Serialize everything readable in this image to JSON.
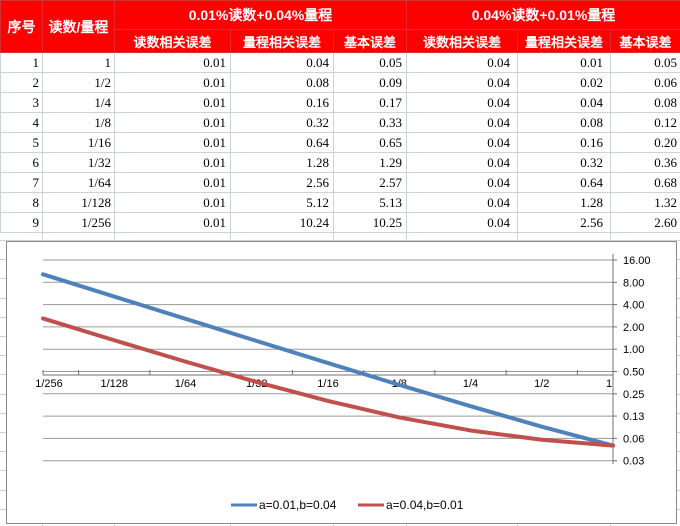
{
  "table": {
    "headers": {
      "serial": "序号",
      "ratio": "读数/量程",
      "group1": "0.01%读数+0.04%量程",
      "group2": "0.04%读数+0.01%量程",
      "sub": [
        "读数相关误差",
        "量程相关误差",
        "基本误差",
        "读数相关误差",
        "量程相关误差",
        "基本误差"
      ]
    },
    "rows": [
      {
        "serial": "1",
        "ratio": "1",
        "cells": [
          "0.01",
          "0.04",
          "0.05",
          "0.04",
          "0.01",
          "0.05"
        ]
      },
      {
        "serial": "2",
        "ratio": "1/2",
        "cells": [
          "0.01",
          "0.08",
          "0.09",
          "0.04",
          "0.02",
          "0.06"
        ]
      },
      {
        "serial": "3",
        "ratio": "1/4",
        "cells": [
          "0.01",
          "0.16",
          "0.17",
          "0.04",
          "0.04",
          "0.08"
        ]
      },
      {
        "serial": "4",
        "ratio": "1/8",
        "cells": [
          "0.01",
          "0.32",
          "0.33",
          "0.04",
          "0.08",
          "0.12"
        ]
      },
      {
        "serial": "5",
        "ratio": "1/16",
        "cells": [
          "0.01",
          "0.64",
          "0.65",
          "0.04",
          "0.16",
          "0.20"
        ]
      },
      {
        "serial": "6",
        "ratio": "1/32",
        "cells": [
          "0.01",
          "1.28",
          "1.29",
          "0.04",
          "0.32",
          "0.36"
        ]
      },
      {
        "serial": "7",
        "ratio": "1/64",
        "cells": [
          "0.01",
          "2.56",
          "2.57",
          "0.04",
          "0.64",
          "0.68"
        ]
      },
      {
        "serial": "8",
        "ratio": "1/128",
        "cells": [
          "0.01",
          "5.12",
          "5.13",
          "0.04",
          "1.28",
          "1.32"
        ]
      },
      {
        "serial": "9",
        "ratio": "1/256",
        "cells": [
          "0.01",
          "10.24",
          "10.25",
          "0.04",
          "2.56",
          "2.60"
        ]
      }
    ]
  },
  "chart_data": {
    "type": "line",
    "title": "",
    "categories": [
      "1/256",
      "1/128",
      "1/64",
      "1/32",
      "1/16",
      "1/8",
      "1/4",
      "1/2",
      "1"
    ],
    "series": [
      {
        "name": "a=0.01,b=0.04",
        "color": "#4F81BD",
        "values": [
          10.25,
          5.13,
          2.57,
          1.29,
          0.65,
          0.33,
          0.17,
          0.09,
          0.05
        ]
      },
      {
        "name": "a=0.04,b=0.01",
        "color": "#C0504D",
        "values": [
          2.6,
          1.32,
          0.68,
          0.36,
          0.2,
          0.12,
          0.08,
          0.06,
          0.05
        ]
      }
    ],
    "y_axis": {
      "scale": "log2",
      "range": [
        0.03125,
        16
      ],
      "ticks": [
        {
          "label": "16.00",
          "value": 16
        },
        {
          "label": "8.00",
          "value": 8
        },
        {
          "label": "4.00",
          "value": 4
        },
        {
          "label": "2.00",
          "value": 2
        },
        {
          "label": "1.00",
          "value": 1
        },
        {
          "label": "0.50",
          "value": 0.5
        },
        {
          "label": "0.25",
          "value": 0.25
        },
        {
          "label": "0.13",
          "value": 0.125
        },
        {
          "label": "0.06",
          "value": 0.0625
        },
        {
          "label": "0.03",
          "value": 0.03125
        }
      ]
    },
    "grid": true,
    "legend_position": "bottom",
    "colors": {
      "gridline": "#9a9a9a",
      "axis": "#707070",
      "header_red": "#fe0000",
      "sheet_gridline": "#ccd2dd"
    }
  }
}
